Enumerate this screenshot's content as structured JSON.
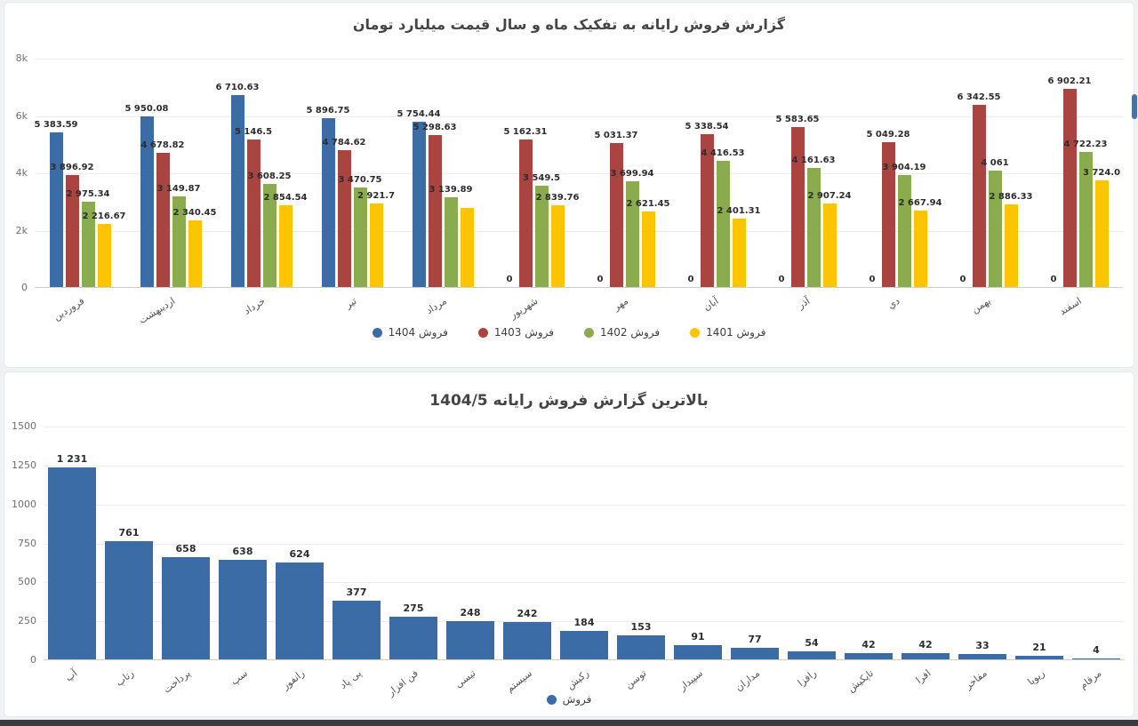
{
  "page": {
    "background": "#f0f1f3",
    "card_background": "#ffffff",
    "footer_bar_color": "#383c42",
    "scrollbar_color": "#4273aa",
    "accent_blue": "#3c6ca6",
    "accent_red": "#aa4441",
    "accent_green": "#8bab4f",
    "accent_yellow": "#fdc500"
  },
  "chart_data": [
    {
      "type": "bar",
      "title": "گزارش فروش رایانه به تفکیک ماه و سال قیمت میلیارد تومان",
      "categories": [
        "فروردین",
        "اردیبهشت",
        "خرداد",
        "تیر",
        "مرداد",
        "شهریور",
        "مهر",
        "آبان",
        "آذر",
        "دي",
        "بهمن",
        "اسفند"
      ],
      "series": [
        {
          "name": "فروش 1404",
          "color": "#3c6ca6",
          "values": [
            5383.59,
            5950.08,
            6710.63,
            5896.75,
            5754.44,
            0,
            0,
            0,
            0,
            0,
            0,
            0
          ],
          "labels": [
            "5 383.59",
            "5 950.08",
            "6 710.63",
            "5 896.75",
            "5 754.44",
            "0",
            "0",
            "0",
            "0",
            "0",
            "0",
            "0"
          ]
        },
        {
          "name": "فروش 1403",
          "color": "#aa4441",
          "values": [
            3896.92,
            4678.82,
            5146.5,
            4784.62,
            5298.63,
            5162.31,
            5031.37,
            5338.54,
            5583.65,
            5049.28,
            6342.55,
            6902.21
          ],
          "labels": [
            "3 896.92",
            "4 678.82",
            "5 146.5",
            "4 784.62",
            "5 298.63",
            "5 162.31",
            "5 031.37",
            "5 338.54",
            "5 583.65",
            "5 049.28",
            "6 342.55",
            "6 902.21"
          ]
        },
        {
          "name": "فروش 1402",
          "color": "#8bab4f",
          "values": [
            2975.34,
            3149.87,
            3608.25,
            3470.75,
            3139.89,
            3549.5,
            3699.94,
            4416.53,
            4161.63,
            3904.19,
            4061,
            4722.23
          ],
          "labels": [
            "2 975.34",
            "3 149.87",
            "3 608.25",
            "3 470.75",
            "3 139.89",
            "3 549.5",
            "3 699.94",
            "4 416.53",
            "4 161.63",
            "3 904.19",
            "4 061",
            "4 722.23"
          ]
        },
        {
          "name": "فروش 1401",
          "color": "#fdc500",
          "values": [
            2216.67,
            2340.45,
            2854.54,
            2921.7,
            2770,
            2839.76,
            2621.45,
            2401.31,
            2907.24,
            2667.94,
            2886.33,
            3724.0
          ],
          "labels": [
            "2 216.67",
            "2 340.45",
            "2 854.54",
            "2 921.7",
            "",
            "2 839.76",
            "2 621.45",
            "2 401.31",
            "2 907.24",
            "2 667.94",
            "2 886.33",
            "3 724.0"
          ]
        }
      ],
      "ylim": [
        0,
        8000
      ],
      "y_ticks": [
        {
          "label": "0",
          "value": 0
        },
        {
          "label": "2k",
          "value": 2000
        },
        {
          "label": "4k",
          "value": 4000
        },
        {
          "label": "6k",
          "value": 6000
        },
        {
          "label": "8k",
          "value": 8000
        }
      ],
      "grid": true,
      "legend_position": "bottom"
    },
    {
      "type": "bar",
      "title": "بالاترین گزارش فروش رایانه 1404/5",
      "categories": [
        "آپ",
        "رتاپ",
        "پرداخت",
        "سپ",
        "رانفور",
        "پی پاد",
        "فن افزار",
        "تیسی",
        "سیستم",
        "رکیش",
        "توسن",
        "سپیدار",
        "مداران",
        "رافزا",
        "تاپکیش",
        "افرا",
        "مفاخر",
        "ریویا",
        "مرقام"
      ],
      "series": [
        {
          "name": "فروش",
          "color": "#3c6ca6",
          "values": [
            1231,
            761,
            658,
            638,
            624,
            377,
            275,
            248,
            242,
            184,
            153,
            91,
            77,
            54,
            42,
            42,
            33,
            21,
            4
          ],
          "labels": [
            "1 231",
            "761",
            "658",
            "638",
            "624",
            "377",
            "275",
            "248",
            "242",
            "184",
            "153",
            "91",
            "77",
            "54",
            "42",
            "42",
            "33",
            "21",
            "4"
          ]
        }
      ],
      "ylim": [
        0,
        1500
      ],
      "y_ticks": [
        {
          "label": "0",
          "value": 0
        },
        {
          "label": "250",
          "value": 250
        },
        {
          "label": "500",
          "value": 500
        },
        {
          "label": "750",
          "value": 750
        },
        {
          "label": "1000",
          "value": 1000
        },
        {
          "label": "1250",
          "value": 1250
        },
        {
          "label": "1500",
          "value": 1500
        }
      ],
      "grid": true,
      "legend_position": "bottom"
    }
  ]
}
